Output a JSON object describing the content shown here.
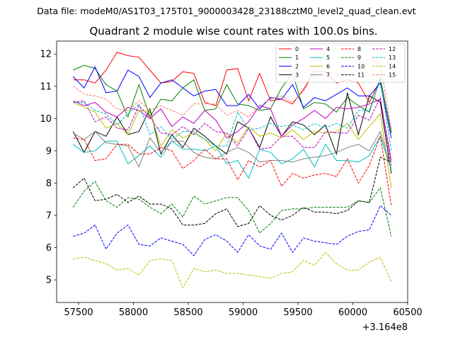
{
  "header": {
    "file_line": "Data file: modeM0/AS1T03_175T01_9000003428_23188cztM0_level2_quad_clean.evt",
    "title": "Quadrant 2 module wise count rates with 100.0s bins."
  },
  "chart_data": {
    "type": "line",
    "title": "Quadrant 2 module wise count rates with 100.0s bins.",
    "xlabel": "",
    "ylabel": "",
    "x_offset_label": "+3.164e8",
    "xlim": [
      57300,
      60500
    ],
    "ylim": [
      4.3,
      12.4
    ],
    "xticks": [
      57500,
      58000,
      58500,
      59000,
      59500,
      60000,
      60500
    ],
    "yticks": [
      5,
      6,
      7,
      8,
      9,
      10,
      11,
      12
    ],
    "grid": false,
    "legend_position": "top-right",
    "x": [
      57450,
      57550,
      57650,
      57750,
      57850,
      57950,
      58050,
      58150,
      58250,
      58350,
      58450,
      58550,
      58650,
      58750,
      58850,
      58950,
      59050,
      59150,
      59250,
      59350,
      59450,
      59550,
      59650,
      59750,
      59850,
      59950,
      60050,
      60150,
      60250,
      60350
    ],
    "series": [
      {
        "name": "0",
        "color": "#ff0000",
        "dash": "solid",
        "values": [
          11.2,
          11.2,
          11.1,
          11.5,
          12.05,
          11.95,
          11.9,
          11.5,
          11.1,
          11.15,
          11.45,
          11.4,
          10.5,
          10.4,
          11.5,
          11.55,
          10.55,
          11.4,
          10.55,
          10.6,
          10.45,
          10.9,
          11.45,
          11.45,
          11.1,
          11.2,
          11.1,
          10.5,
          11.2,
          9.6
        ]
      },
      {
        "name": "1",
        "color": "#008000",
        "dash": "solid",
        "values": [
          11.5,
          11.65,
          11.55,
          11.05,
          10.85,
          10.05,
          11.05,
          10.05,
          10.6,
          10.55,
          10.95,
          11.2,
          10.25,
          10.3,
          11.05,
          10.45,
          10.4,
          10.25,
          10.3,
          10.95,
          11.4,
          10.3,
          10.5,
          10.45,
          10.2,
          10.65,
          10.4,
          10.2,
          11.25,
          9.55
        ]
      },
      {
        "name": "2",
        "color": "#0000ff",
        "dash": "solid",
        "values": [
          11.3,
          10.95,
          11.6,
          10.8,
          10.85,
          11.5,
          11.3,
          10.65,
          11.1,
          11.2,
          10.95,
          10.7,
          10.85,
          10.9,
          10.4,
          10.4,
          10.75,
          10.3,
          10.65,
          10.6,
          11.05,
          10.35,
          10.65,
          10.55,
          10.75,
          10.95,
          10.7,
          10.7,
          11.1,
          9.4
        ]
      },
      {
        "name": "3",
        "color": "#000000",
        "dash": "solid",
        "values": [
          9.6,
          8.95,
          9.6,
          9.45,
          10.05,
          9.5,
          9.6,
          10.3,
          8.9,
          9.5,
          9.1,
          9.7,
          9.45,
          9.15,
          8.9,
          9.9,
          9.7,
          9.1,
          10.05,
          9.45,
          9.9,
          9.8,
          9.5,
          9.8,
          8.9,
          10.8,
          9.5,
          10.7,
          10.5,
          8.3
        ]
      },
      {
        "name": "4",
        "color": "#bf00bf",
        "dash": "solid",
        "values": [
          10.55,
          10.4,
          10.5,
          10.2,
          10.05,
          10.35,
          10.25,
          10.0,
          10.3,
          9.75,
          10.05,
          9.85,
          10.25,
          9.95,
          9.4,
          9.6,
          9.9,
          10.4,
          10.3,
          9.45,
          9.8,
          10.0,
          10.25,
          10.0,
          10.35,
          10.3,
          10.35,
          10.45,
          10.6,
          8.7
        ]
      },
      {
        "name": "5",
        "color": "#00bfbf",
        "dash": "solid",
        "values": [
          9.2,
          8.95,
          9.0,
          9.3,
          9.3,
          8.6,
          8.85,
          9.15,
          8.8,
          9.3,
          9.05,
          9.05,
          9.0,
          9.15,
          8.6,
          8.7,
          8.15,
          9.05,
          8.95,
          8.6,
          8.75,
          9.05,
          8.5,
          9.2,
          8.7,
          8.7,
          8.65,
          8.85,
          9.45,
          8.4
        ]
      },
      {
        "name": "6",
        "color": "#bfbf00",
        "dash": "solid",
        "values": [
          10.5,
          10.35,
          10.2,
          9.7,
          9.85,
          9.5,
          10.25,
          10.2,
          9.15,
          9.65,
          9.4,
          9.55,
          9.35,
          9.0,
          9.55,
          9.25,
          9.75,
          9.45,
          9.55,
          9.4,
          9.65,
          9.35,
          9.6,
          9.55,
          9.6,
          9.85,
          9.35,
          9.75,
          10.15,
          7.85
        ]
      },
      {
        "name": "7",
        "color": "#808080",
        "dash": "solid",
        "values": [
          9.55,
          9.35,
          9.6,
          9.25,
          9.2,
          9.15,
          8.5,
          9.4,
          8.95,
          9.3,
          9.3,
          8.95,
          8.8,
          8.75,
          8.95,
          9.1,
          8.95,
          8.65,
          8.7,
          8.7,
          8.65,
          8.75,
          8.8,
          8.85,
          8.95,
          9.1,
          9.2,
          9.0,
          9.6,
          8.45
        ]
      },
      {
        "name": "8",
        "color": "#ff0000",
        "dash": "dashed",
        "values": [
          9.4,
          9.35,
          8.7,
          8.75,
          9.2,
          9.2,
          8.9,
          8.9,
          9.1,
          9.0,
          8.45,
          8.7,
          9.05,
          8.75,
          8.75,
          8.1,
          8.7,
          8.5,
          8.7,
          7.9,
          8.3,
          8.15,
          8.25,
          8.3,
          8.2,
          8.75,
          8.0,
          8.55,
          9.45,
          7.3
        ]
      },
      {
        "name": "9",
        "color": "#008000",
        "dash": "dashed",
        "values": [
          7.25,
          7.75,
          8.05,
          7.45,
          7.25,
          7.55,
          7.5,
          7.25,
          7.05,
          7.35,
          6.95,
          7.6,
          7.35,
          7.45,
          7.55,
          7.55,
          7.15,
          6.45,
          6.75,
          7.15,
          7.2,
          7.2,
          7.25,
          7.25,
          7.25,
          7.25,
          7.45,
          7.4,
          7.85,
          6.35
        ]
      },
      {
        "name": "10",
        "color": "#0000ff",
        "dash": "dashed",
        "values": [
          6.35,
          6.45,
          6.7,
          5.95,
          6.45,
          6.7,
          6.1,
          6.05,
          6.3,
          6.2,
          6.1,
          5.75,
          6.25,
          6.4,
          6.2,
          5.85,
          6.4,
          6.05,
          5.95,
          6.45,
          5.85,
          6.3,
          6.2,
          6.15,
          6.1,
          6.35,
          6.5,
          6.55,
          7.3,
          7.0
        ]
      },
      {
        "name": "11",
        "color": "#000000",
        "dash": "dashed",
        "values": [
          7.85,
          8.15,
          7.45,
          7.5,
          7.65,
          7.4,
          7.6,
          7.35,
          7.35,
          7.2,
          6.7,
          6.7,
          6.75,
          7.05,
          7.2,
          6.65,
          6.75,
          7.3,
          7.0,
          6.85,
          7.0,
          7.25,
          7.1,
          7.1,
          7.05,
          7.15,
          7.45,
          7.4,
          8.8,
          8.65
        ]
      },
      {
        "name": "12",
        "color": "#bf00bf",
        "dash": "dashed",
        "values": [
          10.5,
          10.55,
          9.9,
          10.05,
          9.7,
          9.65,
          10.4,
          10.05,
          9.55,
          9.5,
          9.75,
          9.5,
          9.85,
          9.6,
          9.55,
          9.15,
          9.7,
          9.05,
          9.1,
          9.45,
          9.45,
          9.1,
          9.1,
          9.6,
          9.55,
          9.55,
          10.1,
          9.95,
          10.65,
          8.55
        ]
      },
      {
        "name": "13",
        "color": "#00bfbf",
        "dash": "dashed",
        "values": [
          10.5,
          10.5,
          10.25,
          10.15,
          9.8,
          10.15,
          10.45,
          9.5,
          9.75,
          9.35,
          9.6,
          9.6,
          9.35,
          9.15,
          9.15,
          10.2,
          9.65,
          9.7,
          9.85,
          9.75,
          9.8,
          9.65,
          9.85,
          9.7,
          9.85,
          9.7,
          10.25,
          10.25,
          11.2,
          9.0
        ]
      },
      {
        "name": "14",
        "color": "#bfbf00",
        "dash": "dashed",
        "values": [
          5.65,
          5.7,
          5.6,
          5.5,
          5.3,
          5.35,
          5.15,
          5.6,
          5.65,
          5.6,
          4.75,
          5.35,
          5.25,
          5.3,
          5.2,
          5.2,
          5.15,
          5.1,
          5.05,
          5.2,
          5.25,
          5.6,
          5.45,
          5.85,
          5.5,
          5.3,
          5.3,
          5.55,
          5.7,
          4.95
        ]
      },
      {
        "name": "15",
        "color": "#fa8072",
        "dash": "dashed",
        "values": [
          11.0,
          10.75,
          10.7,
          10.6,
          10.3,
          10.25,
          10.55,
          10.25,
          10.4,
          10.25,
          10.1,
          10.45,
          10.45,
          10.45,
          10.1,
          10.25,
          10.05,
          10.4,
          10.6,
          10.7,
          10.5,
          10.85,
          11.45,
          11.45,
          11.35,
          11.3,
          11.35,
          11.85,
          11.7,
          9.65
        ]
      }
    ]
  }
}
